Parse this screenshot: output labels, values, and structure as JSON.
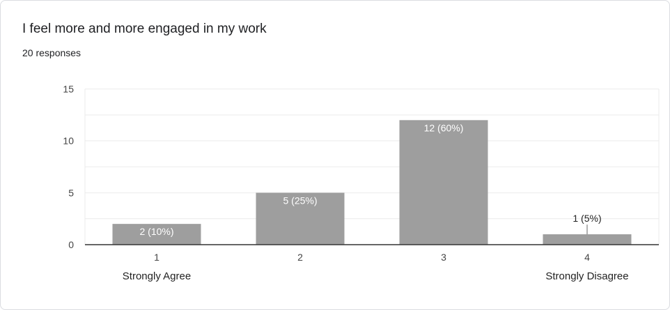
{
  "card": {
    "title": "I feel more and more engaged in my work",
    "subtitle": "20 responses"
  },
  "chart_data": {
    "type": "bar",
    "categories": [
      "1",
      "2",
      "3",
      "4"
    ],
    "values": [
      2,
      5,
      12,
      1
    ],
    "data_labels": [
      "2 (10%)",
      "5 (25%)",
      "12 (60%)",
      "1 (5%)"
    ],
    "yticks": [
      0,
      5,
      10,
      15
    ],
    "ylim": [
      0,
      15
    ],
    "scale_labels": {
      "low": "Strongly Agree",
      "high": "Strongly Disagree"
    },
    "grid": true,
    "colors": {
      "bar": "#9e9e9e",
      "grid": "#ebebeb",
      "axis": "#333333",
      "label_inside": "#ffffff",
      "label_outside": "#222222"
    }
  }
}
